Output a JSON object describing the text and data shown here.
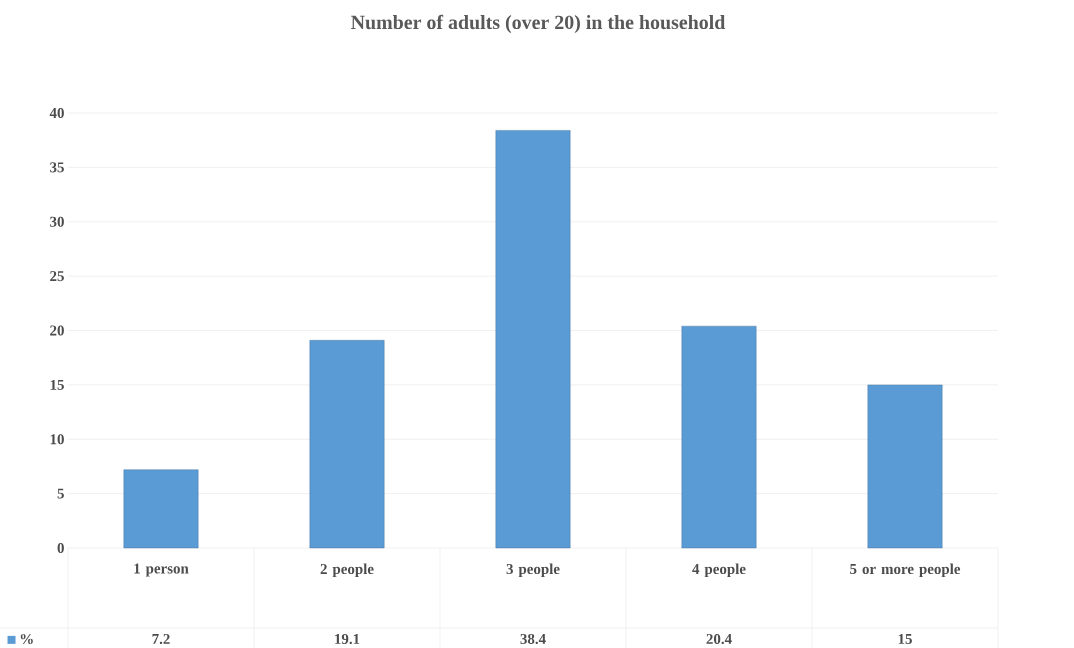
{
  "chart_data": {
    "type": "bar",
    "title": "Number of adults (over 20) in the household",
    "categories": [
      "1 person",
      "2 people",
      "3 people",
      "4 people",
      "5 or more people"
    ],
    "series": [
      {
        "name": "%",
        "color": "#5b9bd5",
        "values": [
          7.2,
          19.1,
          38.4,
          20.4,
          15
        ]
      }
    ],
    "ylim": [
      0,
      40
    ],
    "yticks": [
      0,
      5,
      10,
      15,
      20,
      25,
      30,
      35,
      40
    ],
    "grid": "y",
    "data_labels": true,
    "legend": "bottom"
  }
}
